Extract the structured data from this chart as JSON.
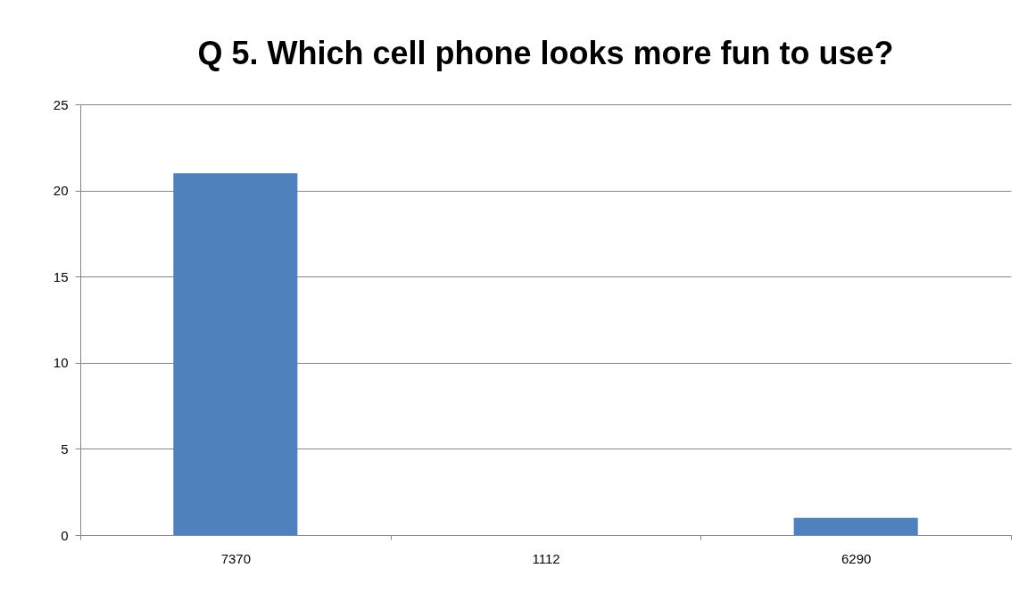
{
  "chart_data": {
    "type": "bar",
    "title": "Q 5. Which cell phone looks more fun to use?",
    "categories": [
      "7370",
      "1112",
      "6290"
    ],
    "values": [
      21,
      0,
      1
    ],
    "color": "#4f81bd",
    "ylim": [
      0,
      25
    ],
    "yticks": [
      0,
      5,
      10,
      15,
      20,
      25
    ],
    "grid": "y"
  }
}
